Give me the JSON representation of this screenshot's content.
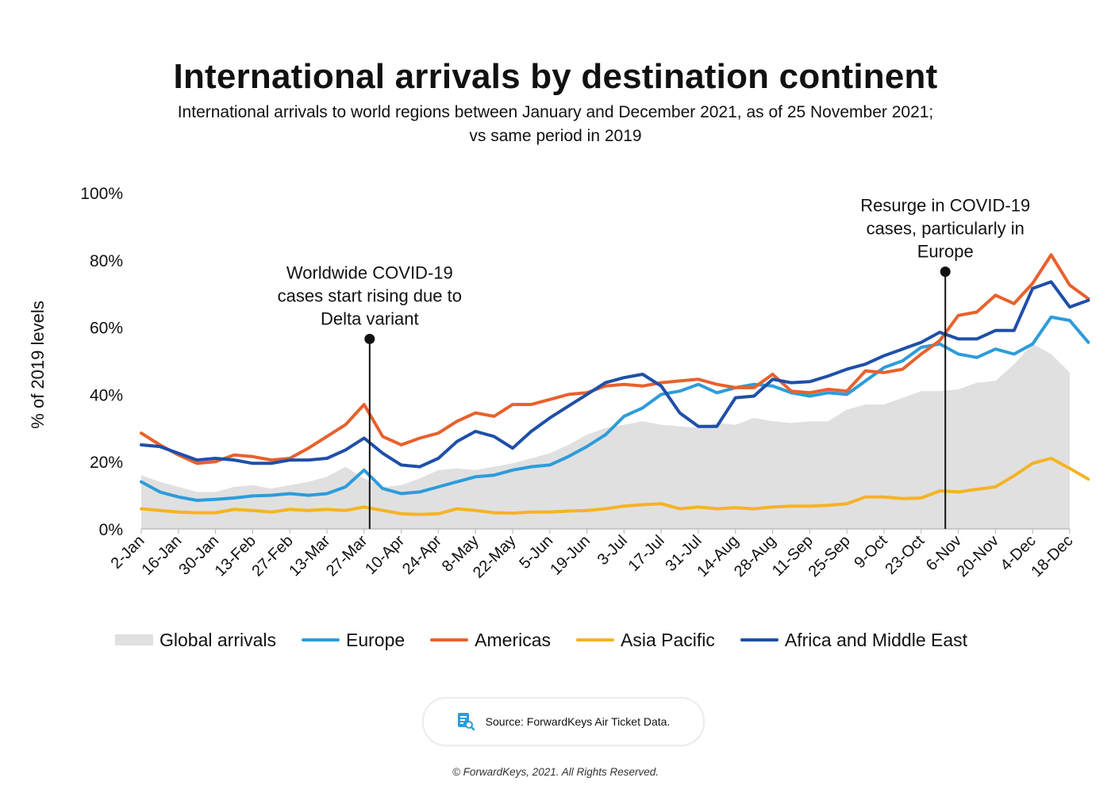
{
  "colors": {
    "global": "#e0e0e0",
    "europe": "#2d9cdb",
    "americas": "#e8612c",
    "asia_pacific": "#f5b324",
    "africa_middle_east": "#1f4fa8"
  },
  "chart_data": {
    "type": "line",
    "title": "International arrivals by destination continent",
    "subtitle_line1": "International arrivals to world regions between January and December 2021, as of 25 November 2021;",
    "subtitle_line2": "vs same period in 2019",
    "ylabel": "% of 2019 levels",
    "xlabel": "",
    "ylim": [
      0,
      100
    ],
    "yticks": [
      "0%",
      "20%",
      "40%",
      "60%",
      "80%",
      "100%"
    ],
    "grid": false,
    "legend_position": "bottom",
    "x_tick_labels": [
      "2-Jan",
      "16-Jan",
      "30-Jan",
      "13-Feb",
      "27-Feb",
      "13-Mar",
      "27-Mar",
      "10-Apr",
      "24-Apr",
      "8-May",
      "22-May",
      "5-Jun",
      "19-Jun",
      "3-Jul",
      "17-Jul",
      "31-Jul",
      "14-Aug",
      "28-Aug",
      "11-Sep",
      "25-Sep",
      "9-Oct",
      "23-Oct",
      "6-Nov",
      "20-Nov",
      "4-Dec",
      "18-Dec"
    ],
    "series": [
      {
        "name": "Global arrivals",
        "kind": "area",
        "color": "#e0e0e0",
        "values": [
          16,
          14,
          12.5,
          11,
          11,
          12.5,
          13,
          12,
          13,
          14,
          15.5,
          18.5,
          15,
          12.5,
          13,
          15,
          17.5,
          18,
          17.5,
          18.5,
          19.5,
          21,
          22.5,
          25,
          28,
          30,
          31,
          32,
          31,
          30.5,
          30,
          31.5,
          31,
          33,
          32,
          31.5,
          32,
          32,
          35.5,
          37,
          37,
          39,
          41,
          41,
          41.5,
          43.5,
          44,
          49,
          55,
          52,
          46.5
        ]
      },
      {
        "name": "Europe",
        "kind": "line",
        "color": "#2d9cdb",
        "values": [
          14,
          11,
          9.5,
          8.5,
          8.8,
          9.2,
          9.8,
          10,
          10.5,
          10,
          10.5,
          12.5,
          17.5,
          12,
          10.5,
          11,
          12.5,
          14,
          15.5,
          16,
          17.5,
          18.5,
          19,
          21.5,
          24.5,
          28,
          33.5,
          36,
          40,
          41,
          43,
          40.5,
          42,
          43,
          42.5,
          40.5,
          39.5,
          40.5,
          40,
          44,
          48,
          50,
          54,
          55,
          52,
          51,
          53.5,
          52,
          55,
          63,
          62,
          55.5
        ]
      },
      {
        "name": "Americas",
        "kind": "line",
        "color": "#e8612c",
        "values": [
          28.5,
          25,
          22,
          19.5,
          20,
          22,
          21.5,
          20.5,
          21,
          24,
          27.5,
          31,
          37,
          27.5,
          25,
          27,
          28.5,
          32,
          34.5,
          33.5,
          37,
          37,
          38.5,
          40,
          40.5,
          42.5,
          43,
          42.5,
          43.5,
          44,
          44.5,
          43,
          42,
          42,
          46,
          41,
          40.5,
          41.5,
          41,
          47,
          46.5,
          47.5,
          52,
          56,
          63.5,
          64.5,
          69.5,
          67,
          73,
          81.5,
          72.5,
          68.5
        ]
      },
      {
        "name": "Asia Pacific",
        "kind": "line",
        "color": "#f5b324",
        "values": [
          6,
          5.5,
          5,
          4.8,
          4.8,
          5.8,
          5.5,
          5,
          5.8,
          5.5,
          5.8,
          5.5,
          6.5,
          5.5,
          4.5,
          4.3,
          4.5,
          6,
          5.5,
          4.8,
          4.7,
          5,
          5,
          5.3,
          5.5,
          6,
          6.8,
          7.2,
          7.5,
          6,
          6.5,
          6,
          6.3,
          6,
          6.5,
          6.8,
          6.8,
          7,
          7.5,
          9.5,
          9.5,
          9,
          9.2,
          11.3,
          11,
          11.8,
          12.5,
          15.8,
          19.5,
          21,
          18,
          14.8
        ]
      },
      {
        "name": "Africa and Middle East",
        "kind": "line",
        "color": "#1f4fa8",
        "values": [
          25,
          24.5,
          22.5,
          20.5,
          21,
          20.5,
          19.5,
          19.5,
          20.5,
          20.5,
          21,
          23.5,
          27,
          22.5,
          19,
          18.5,
          21,
          26,
          29,
          27.5,
          24,
          29,
          33,
          36.5,
          40,
          43.5,
          45,
          46,
          42.5,
          34.5,
          30.5,
          30.5,
          39,
          39.5,
          44.5,
          43.5,
          43.8,
          45.5,
          47.5,
          49,
          51.5,
          53.5,
          55.5,
          58.5,
          56.5,
          56.5,
          59,
          59,
          71.5,
          73.5,
          66,
          68
        ]
      }
    ],
    "annotations": [
      {
        "text_lines": [
          "Worldwide COVID-19",
          "cases start rising due to",
          "Delta variant"
        ],
        "x_index": 12.3,
        "y_value": 56.5
      },
      {
        "text_lines": [
          "Resurge in COVID-19",
          "cases, particularly in",
          "Europe"
        ],
        "x_index": 43.3,
        "y_value": 76.5
      }
    ]
  },
  "legend": {
    "items": [
      "Global arrivals",
      "Europe",
      "Americas",
      "Asia Pacific",
      "Africa and Middle East"
    ]
  },
  "footer": {
    "source_text": "Source: ForwardKeys Air Ticket Data.",
    "copyright": "© ForwardKeys, 2021. All Rights Reserved."
  }
}
